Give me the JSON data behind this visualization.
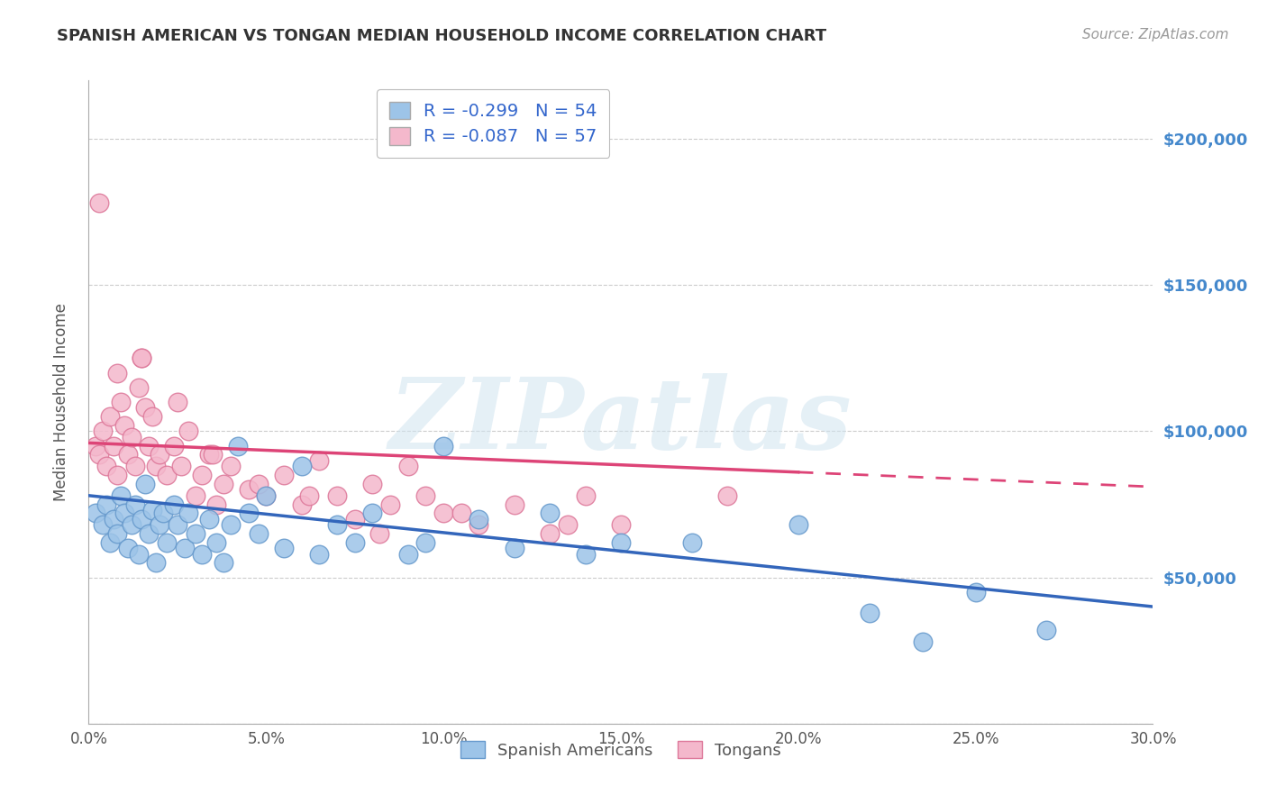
{
  "title": "SPANISH AMERICAN VS TONGAN MEDIAN HOUSEHOLD INCOME CORRELATION CHART",
  "source": "Source: ZipAtlas.com",
  "xlabel": "",
  "ylabel": "Median Household Income",
  "watermark": "ZIPatlas",
  "xmin": 0.0,
  "xmax": 30.0,
  "ymin": 0,
  "ymax": 220000,
  "yticks": [
    0,
    50000,
    100000,
    150000,
    200000
  ],
  "ytick_labels": [
    "",
    "$50,000",
    "$100,000",
    "$150,000",
    "$200,000"
  ],
  "xticks": [
    0.0,
    5.0,
    10.0,
    15.0,
    20.0,
    25.0,
    30.0
  ],
  "xtick_labels": [
    "0.0%",
    "5.0%",
    "10.0%",
    "15.0%",
    "20.0%",
    "25.0%",
    "30.0%"
  ],
  "blue_color": "#9dc4e8",
  "pink_color": "#f4b8cc",
  "blue_edge": "#6699cc",
  "pink_edge": "#dd7799",
  "trend_blue": "#3366bb",
  "trend_pink": "#dd4477",
  "legend_blue_r": "-0.299",
  "legend_blue_n": "54",
  "legend_pink_r": "-0.087",
  "legend_pink_n": "57",
  "legend_label1": "Spanish Americans",
  "legend_label2": "Tongans",
  "blue_trend_x0": 0.0,
  "blue_trend_y0": 78000,
  "blue_trend_x1": 30.0,
  "blue_trend_y1": 40000,
  "pink_trend_x0": 0.0,
  "pink_trend_y0": 96000,
  "pink_trend_x1": 30.0,
  "pink_trend_y1": 81000,
  "pink_dash_cutoff": 20.0,
  "blue_scatter_x": [
    0.2,
    0.4,
    0.5,
    0.6,
    0.7,
    0.8,
    0.9,
    1.0,
    1.1,
    1.2,
    1.3,
    1.4,
    1.5,
    1.6,
    1.7,
    1.8,
    1.9,
    2.0,
    2.1,
    2.2,
    2.4,
    2.5,
    2.7,
    2.8,
    3.0,
    3.2,
    3.4,
    3.6,
    3.8,
    4.0,
    4.2,
    4.5,
    4.8,
    5.0,
    5.5,
    6.0,
    6.5,
    7.0,
    7.5,
    8.0,
    9.0,
    9.5,
    10.0,
    11.0,
    12.0,
    13.0,
    14.0,
    15.0,
    17.0,
    20.0,
    25.0,
    27.0,
    22.0,
    23.5
  ],
  "blue_scatter_y": [
    72000,
    68000,
    75000,
    62000,
    70000,
    65000,
    78000,
    72000,
    60000,
    68000,
    75000,
    58000,
    70000,
    82000,
    65000,
    73000,
    55000,
    68000,
    72000,
    62000,
    75000,
    68000,
    60000,
    72000,
    65000,
    58000,
    70000,
    62000,
    55000,
    68000,
    95000,
    72000,
    65000,
    78000,
    60000,
    88000,
    58000,
    68000,
    62000,
    72000,
    58000,
    62000,
    95000,
    70000,
    60000,
    72000,
    58000,
    62000,
    62000,
    68000,
    45000,
    32000,
    38000,
    28000
  ],
  "pink_scatter_x": [
    0.2,
    0.3,
    0.4,
    0.5,
    0.6,
    0.7,
    0.8,
    0.9,
    1.0,
    1.1,
    1.2,
    1.3,
    1.4,
    1.5,
    1.6,
    1.7,
    1.8,
    1.9,
    2.0,
    2.2,
    2.4,
    2.6,
    2.8,
    3.0,
    3.2,
    3.4,
    3.6,
    3.8,
    4.0,
    4.5,
    5.0,
    5.5,
    6.0,
    6.5,
    7.0,
    7.5,
    8.0,
    8.5,
    9.0,
    9.5,
    10.0,
    11.0,
    12.0,
    13.0,
    14.0,
    0.3,
    0.8,
    1.5,
    2.5,
    3.5,
    4.8,
    6.2,
    8.2,
    10.5,
    13.5,
    15.0,
    18.0
  ],
  "pink_scatter_y": [
    95000,
    92000,
    100000,
    88000,
    105000,
    95000,
    85000,
    110000,
    102000,
    92000,
    98000,
    88000,
    115000,
    125000,
    108000,
    95000,
    105000,
    88000,
    92000,
    85000,
    95000,
    88000,
    100000,
    78000,
    85000,
    92000,
    75000,
    82000,
    88000,
    80000,
    78000,
    85000,
    75000,
    90000,
    78000,
    70000,
    82000,
    75000,
    88000,
    78000,
    72000,
    68000,
    75000,
    65000,
    78000,
    178000,
    120000,
    125000,
    110000,
    92000,
    82000,
    78000,
    65000,
    72000,
    68000,
    68000,
    78000
  ]
}
